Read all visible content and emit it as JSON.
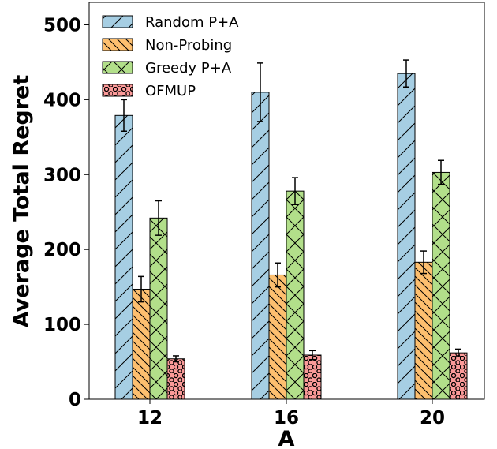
{
  "chart_data": {
    "type": "bar",
    "title": "",
    "xlabel": "A",
    "ylabel": "Average Total Regret",
    "categories": [
      "12",
      "16",
      "20"
    ],
    "ylim": [
      0,
      530
    ],
    "yticks": [
      0,
      100,
      200,
      300,
      400,
      500
    ],
    "grid": false,
    "legend_position": "top-left",
    "series": [
      {
        "name": "Random P+A",
        "color": "#a6cee3",
        "hatch": "forward-diagonal",
        "values": [
          379,
          410,
          435
        ],
        "errors": [
          21,
          39,
          18
        ]
      },
      {
        "name": "Non-Probing",
        "color": "#fdbf6f",
        "hatch": "back-diagonal",
        "values": [
          147,
          166,
          183
        ],
        "errors": [
          17,
          16,
          15
        ]
      },
      {
        "name": "Greedy P+A",
        "color": "#b2df8a",
        "hatch": "crosshatch",
        "values": [
          242,
          278,
          303
        ],
        "errors": [
          23,
          18,
          16
        ]
      },
      {
        "name": "OFMUP",
        "color": "#fb9a99",
        "hatch": "circles",
        "values": [
          54,
          59,
          62
        ],
        "errors": [
          4,
          6,
          5
        ]
      }
    ]
  }
}
